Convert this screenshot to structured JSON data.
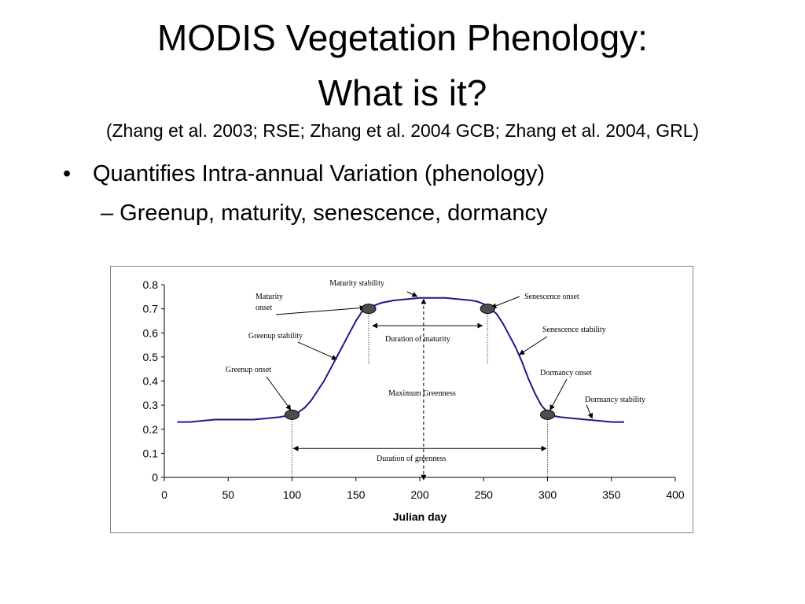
{
  "slide": {
    "title_line1": "MODIS Vegetation Phenology:",
    "title_line2": "What is it?",
    "citation": "(Zhang et al. 2003; RSE; Zhang et al. 2004 GCB; Zhang et al. 2004, GRL)",
    "bullet_symbol": "•",
    "bullet1": "Quantifies Intra-annual Variation (phenology)",
    "bullet2": "– Greenup, maturity, senescence, dormancy"
  },
  "chart_data": {
    "type": "line",
    "xlabel": "Julian day",
    "ylabel": "",
    "xlim": [
      0,
      400
    ],
    "ylim": [
      0,
      0.8
    ],
    "x_ticks": [
      0,
      50,
      100,
      150,
      200,
      250,
      300,
      350,
      400
    ],
    "y_ticks": [
      0,
      0.1,
      0.2,
      0.3,
      0.4,
      0.5,
      0.6,
      0.7,
      0.8
    ],
    "y_tick_labels": [
      "0",
      "0.1",
      "0.2",
      "0.3",
      "0.4",
      "0.5",
      "0.6",
      "0.7",
      "0.8"
    ],
    "grid": false,
    "line_color": "#1a1a8c",
    "series": [
      {
        "x": [
          10,
          20,
          30,
          40,
          50,
          60,
          70,
          80,
          90,
          100,
          105,
          110,
          115,
          120,
          125,
          130,
          135,
          140,
          145,
          150,
          155,
          160,
          165,
          170,
          180,
          190,
          200,
          210,
          220,
          230,
          240,
          245,
          250,
          255,
          260,
          265,
          270,
          275,
          280,
          285,
          290,
          295,
          300,
          305,
          310,
          320,
          330,
          340,
          350,
          360
        ],
        "y": [
          0.23,
          0.23,
          0.235,
          0.24,
          0.24,
          0.24,
          0.24,
          0.245,
          0.25,
          0.26,
          0.27,
          0.29,
          0.32,
          0.36,
          0.4,
          0.45,
          0.5,
          0.55,
          0.6,
          0.65,
          0.69,
          0.7,
          0.715,
          0.725,
          0.735,
          0.74,
          0.745,
          0.745,
          0.745,
          0.74,
          0.735,
          0.73,
          0.72,
          0.7,
          0.68,
          0.64,
          0.59,
          0.54,
          0.48,
          0.41,
          0.35,
          0.3,
          0.27,
          0.255,
          0.25,
          0.245,
          0.24,
          0.235,
          0.23,
          0.23
        ]
      }
    ],
    "markers": [
      {
        "x": 100,
        "y": 0.26
      },
      {
        "x": 160,
        "y": 0.7
      },
      {
        "x": 253,
        "y": 0.7
      },
      {
        "x": 300,
        "y": 0.26
      }
    ],
    "annotations": {
      "maturity_stability": "Maturity stability",
      "maturity_onset_1": "Maturity",
      "maturity_onset_2": "onset",
      "senescence_onset": "Senescence onset",
      "greenup_stability": "Greenup stability",
      "duration_maturity": "Duration of maturity",
      "senescence_stability": "Senescence stability",
      "greenup_onset": "Greenup onset",
      "dormancy_onset": "Dormancy onset",
      "maximum_greenness": "Maximum Greenness",
      "dormancy_stability": "Dormancy stability",
      "duration_greenness": "Duration of greenness"
    }
  }
}
